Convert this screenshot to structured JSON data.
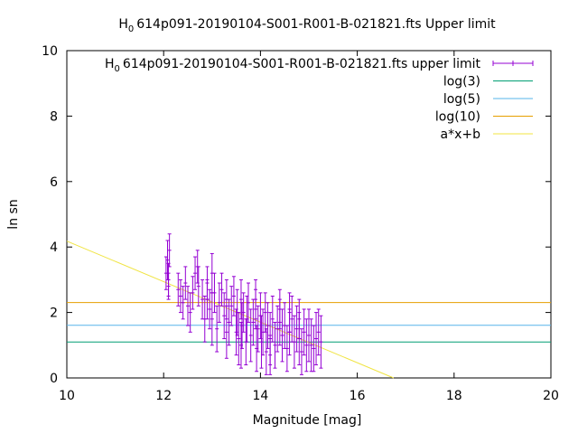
{
  "chart_data": {
    "type": "scatter",
    "title_main": "H",
    "title_sub": "0",
    "title_rest": "614p091-20190104-S001-R001-B-021821.fts Upper limit",
    "xlabel": "Magnitude [mag]",
    "ylabel": "ln sn",
    "xlim": [
      10,
      20
    ],
    "ylim": [
      0,
      10
    ],
    "xticks": [
      "10",
      "12",
      "14",
      "16",
      "18",
      "20"
    ],
    "yticks": [
      "0",
      "2",
      "4",
      "6",
      "8",
      "10"
    ],
    "grid": false,
    "legend_position": "top-right",
    "series": [
      {
        "name_main": "H",
        "name_sub": "0",
        "name_rest": "614p091-20190104-S001-R001-B-021821.fts upper limit",
        "kind": "points-errorbars",
        "color": "#9400d3",
        "points": [
          [
            12.05,
            3.2,
            0.5
          ],
          [
            12.08,
            3.6,
            0.6
          ],
          [
            12.1,
            3.0,
            0.5
          ],
          [
            12.1,
            2.8,
            0.4
          ],
          [
            12.12,
            3.9,
            0.5
          ],
          [
            12.3,
            2.7,
            0.5
          ],
          [
            12.35,
            2.5,
            0.5
          ],
          [
            12.4,
            2.3,
            0.5
          ],
          [
            12.45,
            2.9,
            0.5
          ],
          [
            12.5,
            2.2,
            0.6
          ],
          [
            12.55,
            2.0,
            0.6
          ],
          [
            12.6,
            2.6,
            0.5
          ],
          [
            12.65,
            3.2,
            0.5
          ],
          [
            12.7,
            3.4,
            0.5
          ],
          [
            12.72,
            2.8,
            0.6
          ],
          [
            12.8,
            2.4,
            0.6
          ],
          [
            12.85,
            1.8,
            0.7
          ],
          [
            12.9,
            2.9,
            0.5
          ],
          [
            12.95,
            2.1,
            0.6
          ],
          [
            13.0,
            3.2,
            0.6
          ],
          [
            13.05,
            2.6,
            0.6
          ],
          [
            13.1,
            1.5,
            0.7
          ],
          [
            13.15,
            2.3,
            0.6
          ],
          [
            13.2,
            2.7,
            0.5
          ],
          [
            13.25,
            1.9,
            0.7
          ],
          [
            13.3,
            2.4,
            0.6
          ],
          [
            13.35,
            1.7,
            0.7
          ],
          [
            13.4,
            2.2,
            0.6
          ],
          [
            13.45,
            2.5,
            0.6
          ],
          [
            13.5,
            1.4,
            0.7
          ],
          [
            13.52,
            2.0,
            0.7
          ],
          [
            13.55,
            1.2,
            0.8
          ],
          [
            13.6,
            2.4,
            0.6
          ],
          [
            13.62,
            1.6,
            0.7
          ],
          [
            13.65,
            2.0,
            0.6
          ],
          [
            13.7,
            1.1,
            0.7
          ],
          [
            13.72,
            1.8,
            0.7
          ],
          [
            13.75,
            2.3,
            0.6
          ],
          [
            13.8,
            1.3,
            0.8
          ],
          [
            13.85,
            1.7,
            0.7
          ],
          [
            13.9,
            2.1,
            0.6
          ],
          [
            13.92,
            0.9,
            0.7
          ],
          [
            13.95,
            1.5,
            0.7
          ],
          [
            14.0,
            1.9,
            0.7
          ],
          [
            14.02,
            1.1,
            0.8
          ],
          [
            14.05,
            1.4,
            0.7
          ],
          [
            14.1,
            2.0,
            0.6
          ],
          [
            14.12,
            0.8,
            0.7
          ],
          [
            14.15,
            1.6,
            0.7
          ],
          [
            14.2,
            1.2,
            0.8
          ],
          [
            14.25,
            1.8,
            0.7
          ],
          [
            14.3,
            1.0,
            0.7
          ],
          [
            14.35,
            1.5,
            0.7
          ],
          [
            14.4,
            2.1,
            0.6
          ],
          [
            14.45,
            1.3,
            0.8
          ],
          [
            14.5,
            1.6,
            0.7
          ],
          [
            14.55,
            0.9,
            0.7
          ],
          [
            14.6,
            1.4,
            0.7
          ],
          [
            14.65,
            1.8,
            0.7
          ],
          [
            14.7,
            1.1,
            0.8
          ],
          [
            14.75,
            1.5,
            0.7
          ],
          [
            14.8,
            1.2,
            0.8
          ],
          [
            14.85,
            0.8,
            0.7
          ],
          [
            14.9,
            1.4,
            0.7
          ],
          [
            14.95,
            1.0,
            0.8
          ],
          [
            15.0,
            1.3,
            0.8
          ],
          [
            15.05,
            1.0,
            0.8
          ],
          [
            15.1,
            0.9,
            0.7
          ],
          [
            15.15,
            1.2,
            0.8
          ],
          [
            15.2,
            1.4,
            0.7
          ],
          [
            15.25,
            1.1,
            0.8
          ],
          [
            13.0,
            1.8,
            0.8
          ],
          [
            13.3,
            1.4,
            0.8
          ],
          [
            13.6,
            1.0,
            0.7
          ],
          [
            14.2,
            0.7,
            0.6
          ],
          [
            14.4,
            1.7,
            0.7
          ],
          [
            13.9,
            2.4,
            0.6
          ],
          [
            14.6,
            2.0,
            0.6
          ],
          [
            14.8,
            1.8,
            0.6
          ],
          [
            12.9,
            2.4,
            0.6
          ]
        ]
      },
      {
        "name": "log(3)",
        "kind": "hline",
        "y": 1.0986,
        "color": "#009e73"
      },
      {
        "name": "log(5)",
        "kind": "hline",
        "y": 1.6094,
        "color": "#56b4e9"
      },
      {
        "name": "log(10)",
        "kind": "hline",
        "y": 2.3026,
        "color": "#e69f00"
      },
      {
        "name": "a*x+b",
        "kind": "line",
        "x": [
          10,
          16.75
        ],
        "y": [
          4.18,
          0
        ],
        "color": "#f0e442"
      }
    ]
  }
}
